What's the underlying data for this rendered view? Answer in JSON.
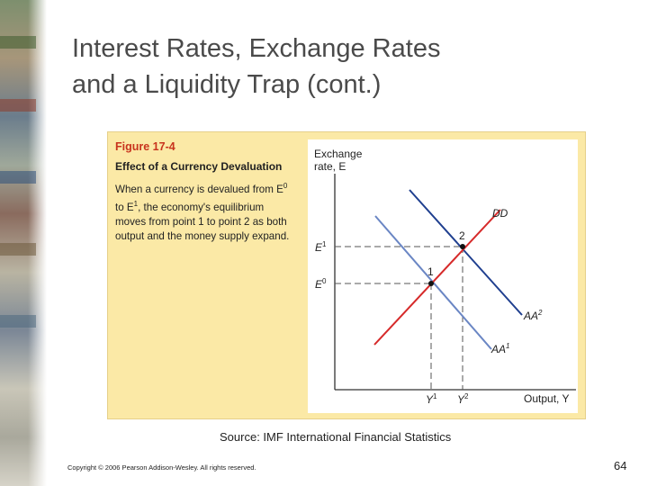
{
  "slide": {
    "title_line1": "Interest Rates, Exchange Rates",
    "title_line2": "and a Liquidity Trap (cont.)",
    "source": "Source:  IMF International Financial Statistics",
    "copyright": "Copyright © 2006 Pearson Addison-Wesley. All rights reserved.",
    "page_number": "64"
  },
  "figure": {
    "number": "Figure 17-4",
    "title": "Effect of a Currency Devaluation",
    "description_parts": {
      "p1": "When a currency is devalued from E",
      "sup1": "0",
      "p2": " to E",
      "sup2": "1",
      "p3": ", the economy's equilibrium moves from point 1 to point 2 as both output and the money supply expand."
    }
  },
  "diagram": {
    "y_axis_label_line1": "Exchange",
    "y_axis_label_line2": "rate, E",
    "x_axis_label": "Output, Y",
    "labels": {
      "E1": "E",
      "E1_sup": "1",
      "E0": "E",
      "E0_sup": "0",
      "Y1": "Y",
      "Y1_sup": "1",
      "Y2": "Y",
      "Y2_sup": "2",
      "DD": "DD",
      "AA2": "AA",
      "AA2_sup": "2",
      "AA1": "AA",
      "AA1_sup": "1",
      "point1": "1",
      "point2": "2"
    },
    "colors": {
      "DD": "#d62a2a",
      "AA1": "#6a86c4",
      "AA2": "#1f3f8f",
      "dashed": "#555555",
      "axis": "#333333"
    }
  }
}
